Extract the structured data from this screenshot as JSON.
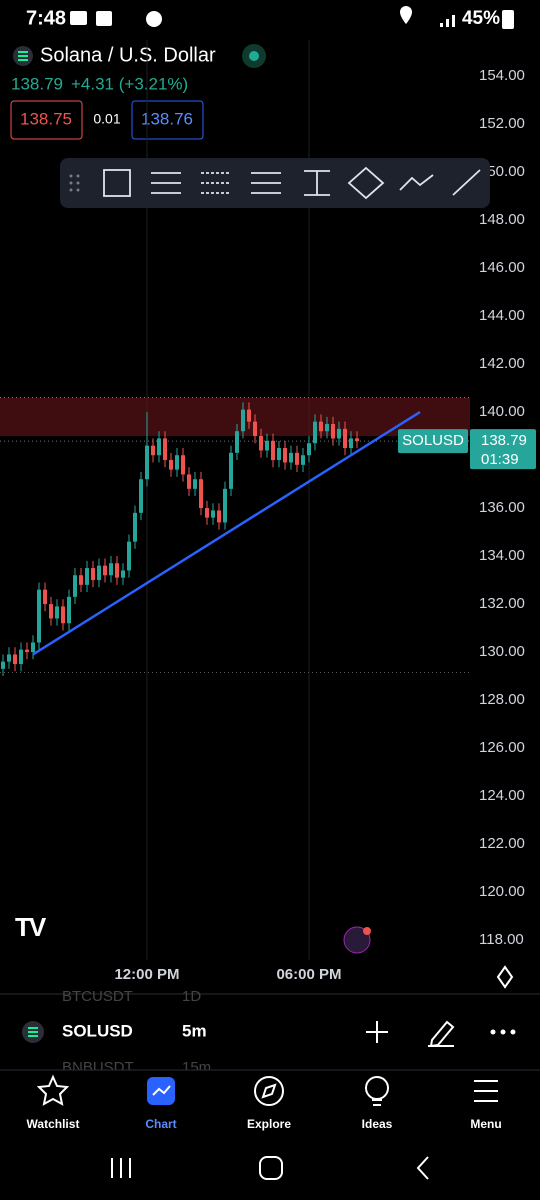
{
  "status_bar": {
    "time": "7:48",
    "battery": "45%"
  },
  "header": {
    "symbol": "Solana / U.S. Dollar",
    "last": "138.79",
    "change": "+4.31 (+3.21%)",
    "bid": "138.75",
    "spread": "0.01",
    "ask": "138.76"
  },
  "chart_data": {
    "type": "candlestick",
    "up_color": "#26a69a",
    "down_color": "#ef5350",
    "categories": [
      null,
      null,
      null,
      null,
      null,
      null,
      null,
      null,
      null,
      null,
      null,
      null,
      null,
      null,
      null,
      null,
      null,
      null,
      null,
      null,
      null,
      null,
      null,
      null,
      "12:00 PM",
      null,
      null,
      null,
      null,
      null,
      null,
      null,
      null,
      null,
      null,
      null,
      null,
      null,
      null,
      null,
      null,
      null,
      null,
      null,
      null,
      null,
      null,
      null,
      null,
      null,
      null,
      "06:00 PM",
      null,
      null,
      null,
      null,
      null,
      null,
      null,
      null
    ],
    "open": [
      129.3,
      129.6,
      129.9,
      129.5,
      130.1,
      130.0,
      130.4,
      132.6,
      132.0,
      131.4,
      131.9,
      131.2,
      132.3,
      133.2,
      132.8,
      133.5,
      133.0,
      133.6,
      133.2,
      133.7,
      133.1,
      133.4,
      134.6,
      135.8,
      137.2,
      138.6,
      138.2,
      138.9,
      138.0,
      137.6,
      138.2,
      137.4,
      136.8,
      137.2,
      136.0,
      135.6,
      135.9,
      135.4,
      136.8,
      138.3,
      139.2,
      140.1,
      139.6,
      139.0,
      138.4,
      138.8,
      138.0,
      138.5,
      137.9,
      138.3,
      137.8,
      138.2,
      138.7,
      139.6,
      139.2,
      139.5,
      138.9,
      139.3,
      138.5,
      138.9
    ],
    "high": [
      129.9,
      130.2,
      130.2,
      130.4,
      130.4,
      130.7,
      132.9,
      132.9,
      132.3,
      132.2,
      132.2,
      132.6,
      133.5,
      133.5,
      133.8,
      133.8,
      133.9,
      133.9,
      134.0,
      134.0,
      133.7,
      134.9,
      136.1,
      137.5,
      140.0,
      138.9,
      139.2,
      139.2,
      138.3,
      138.5,
      138.5,
      137.7,
      137.5,
      137.5,
      136.3,
      136.2,
      136.2,
      137.1,
      138.6,
      139.5,
      140.4,
      140.4,
      139.9,
      139.3,
      139.1,
      139.1,
      138.8,
      138.8,
      138.6,
      138.6,
      138.5,
      139.0,
      139.9,
      139.9,
      139.8,
      139.8,
      139.6,
      139.6,
      139.2,
      139.2
    ],
    "low": [
      129.0,
      129.3,
      129.2,
      129.2,
      129.7,
      129.7,
      130.1,
      131.7,
      131.1,
      131.1,
      130.9,
      130.9,
      132.0,
      132.5,
      132.5,
      132.7,
      132.7,
      132.9,
      132.9,
      132.8,
      132.8,
      133.1,
      134.3,
      135.5,
      136.9,
      137.9,
      137.9,
      137.7,
      137.3,
      137.3,
      137.1,
      136.5,
      136.5,
      135.7,
      135.3,
      135.3,
      135.1,
      135.1,
      136.5,
      138.0,
      138.9,
      139.3,
      138.7,
      138.1,
      138.1,
      137.7,
      137.7,
      137.6,
      137.6,
      137.5,
      137.5,
      137.9,
      138.4,
      138.9,
      138.9,
      138.6,
      138.6,
      138.2,
      138.2,
      138.49
    ],
    "close": [
      129.6,
      129.9,
      129.5,
      130.1,
      130.0,
      130.4,
      132.6,
      132.0,
      131.4,
      131.9,
      131.2,
      132.3,
      133.2,
      132.8,
      133.5,
      133.0,
      133.6,
      133.2,
      133.7,
      133.1,
      133.4,
      134.6,
      135.8,
      137.2,
      138.6,
      138.2,
      138.9,
      138.0,
      137.6,
      138.2,
      137.4,
      136.8,
      137.2,
      136.0,
      135.6,
      135.9,
      135.4,
      136.8,
      138.3,
      139.2,
      140.1,
      139.6,
      139.0,
      138.4,
      138.8,
      138.0,
      138.5,
      137.9,
      138.3,
      137.8,
      138.2,
      138.7,
      139.6,
      139.2,
      139.5,
      138.9,
      139.3,
      138.5,
      138.9,
      138.79
    ],
    "ylim": [
      117.17,
      155.5
    ],
    "yticks": [
      {
        "value": 154,
        "label": "154.00"
      },
      {
        "value": 152,
        "label": "152.00"
      },
      {
        "value": 150,
        "label": "150.00"
      },
      {
        "value": 148,
        "label": "148.00"
      },
      {
        "value": 146,
        "label": "146.00"
      },
      {
        "value": 144,
        "label": "144.00"
      },
      {
        "value": 142,
        "label": "142.00"
      },
      {
        "value": 140,
        "label": "140.00"
      },
      {
        "value": 138,
        "label": "138.00"
      },
      {
        "value": 136,
        "label": "136.00"
      },
      {
        "value": 134,
        "label": "134.00"
      },
      {
        "value": 132,
        "label": "132.00"
      },
      {
        "value": 130,
        "label": "130.00"
      },
      {
        "value": 128,
        "label": "128.00"
      },
      {
        "value": 126,
        "label": "126.00"
      },
      {
        "value": 124,
        "label": "124.00"
      },
      {
        "value": 122,
        "label": "122.00"
      },
      {
        "value": 120,
        "label": "120.00"
      },
      {
        "value": 118,
        "label": "118.00"
      }
    ],
    "zone": {
      "low": 139.0,
      "high": 140.6,
      "color": "#5a1216"
    },
    "low_line": 129.15,
    "trendline": {
      "x": [
        5,
        69.5
      ],
      "y": [
        129.9,
        140.0
      ],
      "color": "#2962ff"
    },
    "last_price": {
      "value": 138.79,
      "label": "138.79"
    },
    "countdown": "01:39",
    "symbol_tag": "SOLUSD"
  },
  "symbol_bar": {
    "symbol": "SOLUSD",
    "interval": "5m",
    "peek_above": [
      "BTCUSDT",
      "1D"
    ],
    "peek_below": [
      "BNBUSDT",
      "15m"
    ]
  },
  "nav": [
    "Watchlist",
    "Chart",
    "Explore",
    "Ideas",
    "Menu"
  ]
}
